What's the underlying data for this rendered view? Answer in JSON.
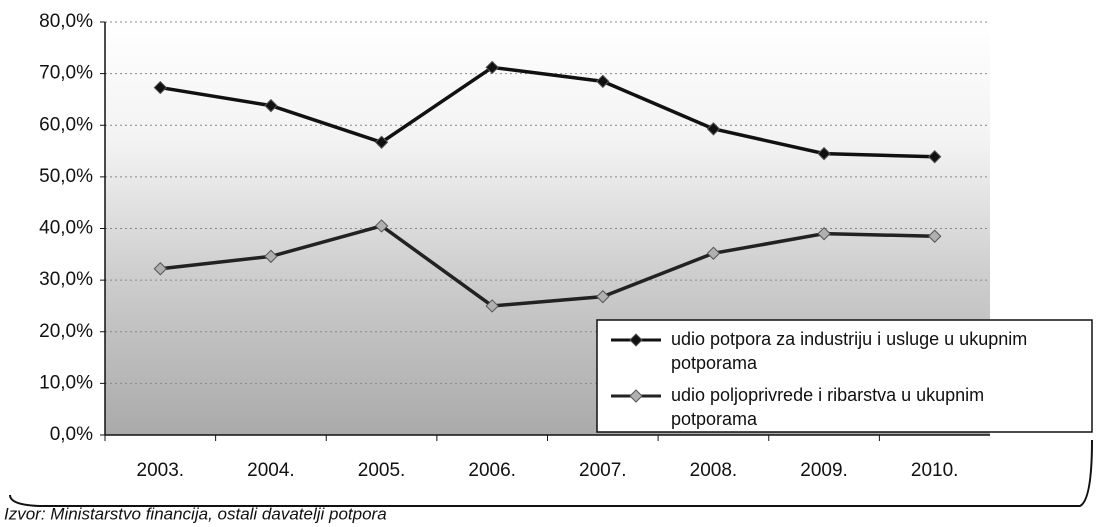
{
  "chart_data": {
    "type": "line",
    "categories": [
      "2003.",
      "2004.",
      "2005.",
      "2006.",
      "2007.",
      "2008.",
      "2009.",
      "2010."
    ],
    "series": [
      {
        "name": "udio potpora za industriju i usluge u ukupnim potporama",
        "color": "#111111",
        "marker_color": "#111111",
        "values": [
          67.3,
          63.8,
          56.7,
          71.2,
          68.5,
          59.3,
          54.5,
          53.9
        ]
      },
      {
        "name": "udio poljoprivrede i ribarstva u ukupnim potporama",
        "color": "#222222",
        "marker_color": "#b0b0b0",
        "values": [
          32.2,
          34.6,
          40.5,
          25.0,
          26.8,
          35.2,
          39.0,
          38.5
        ]
      }
    ],
    "ylim": [
      0,
      80
    ],
    "yticks": [
      {
        "value": 0,
        "label": "0,0%"
      },
      {
        "value": 10,
        "label": "10,0%"
      },
      {
        "value": 20,
        "label": "20,0%"
      },
      {
        "value": 30,
        "label": "30,0%"
      },
      {
        "value": 40,
        "label": "40,0%"
      },
      {
        "value": 50,
        "label": "50,0%"
      },
      {
        "value": 60,
        "label": "60,0%"
      },
      {
        "value": 70,
        "label": "70,0%"
      },
      {
        "value": 80,
        "label": "80,0%"
      }
    ],
    "grid": true,
    "legend": "lower right",
    "note": "Izvor: Ministarstvo financija, ostali davatelji potpora"
  }
}
